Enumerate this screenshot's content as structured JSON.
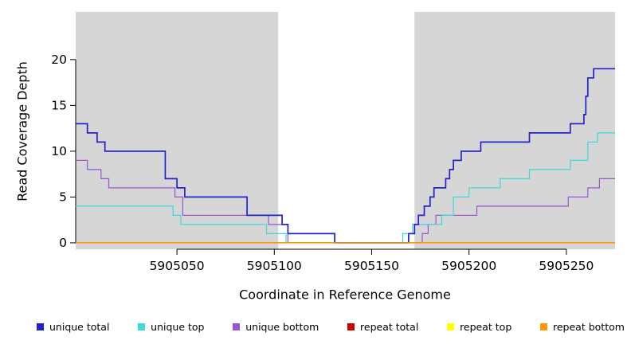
{
  "chart_data": {
    "type": "line",
    "subtype": "step",
    "title": "",
    "xlabel": "Coordinate in Reference Genome",
    "ylabel": "Read Coverage Depth",
    "xlim": [
      5904998,
      5905275
    ],
    "ylim": [
      -0.7,
      25.2
    ],
    "xticks": [
      5905050,
      5905100,
      5905150,
      5905200,
      5905250
    ],
    "yticks": [
      0,
      5,
      10,
      15,
      20
    ],
    "grid": false,
    "legend_position": "bottom",
    "background_color": "#ffffff",
    "shaded_region_color": "#d6d6d6",
    "shaded_regions": [
      {
        "x0": 5904998,
        "x1": 5905102
      },
      {
        "x0": 5905172,
        "x1": 5905275
      }
    ],
    "draw_order": [
      3,
      4,
      2,
      1,
      0,
      5
    ],
    "series": [
      {
        "name": "unique total",
        "color": "#2222CC",
        "width": 1.7,
        "points": [
          [
            5904998,
            13
          ],
          [
            5905004,
            12
          ],
          [
            5905009,
            11
          ],
          [
            5905013,
            10
          ],
          [
            5905044,
            7
          ],
          [
            5905050,
            6
          ],
          [
            5905054,
            5
          ],
          [
            5905086,
            3
          ],
          [
            5905104,
            2
          ],
          [
            5905107,
            1
          ],
          [
            5905131,
            0
          ],
          [
            5905169,
            1
          ],
          [
            5905172,
            2
          ],
          [
            5905174,
            3
          ],
          [
            5905177,
            4
          ],
          [
            5905180,
            5
          ],
          [
            5905182,
            6
          ],
          [
            5905188,
            7
          ],
          [
            5905190,
            8
          ],
          [
            5905192,
            9
          ],
          [
            5905196,
            10
          ],
          [
            5905206,
            11
          ],
          [
            5905231,
            12
          ],
          [
            5905252,
            13
          ],
          [
            5905259,
            14
          ],
          [
            5905260,
            16
          ],
          [
            5905261,
            18
          ],
          [
            5905264,
            19
          ],
          [
            5905275,
            19
          ]
        ]
      },
      {
        "name": "unique top",
        "color": "#3FD9D9",
        "width": 1.2,
        "points": [
          [
            5904998,
            4
          ],
          [
            5905048,
            3
          ],
          [
            5905052,
            2
          ],
          [
            5905096,
            1
          ],
          [
            5905106,
            0
          ],
          [
            5905166,
            1
          ],
          [
            5905171,
            2
          ],
          [
            5905186,
            3
          ],
          [
            5905192,
            5
          ],
          [
            5905200,
            6
          ],
          [
            5905216,
            7
          ],
          [
            5905231,
            8
          ],
          [
            5905252,
            9
          ],
          [
            5905261,
            11
          ],
          [
            5905266,
            12
          ],
          [
            5905275,
            12
          ]
        ]
      },
      {
        "name": "unique bottom",
        "color": "#9955CC",
        "width": 1.2,
        "points": [
          [
            5904998,
            9
          ],
          [
            5905004,
            8
          ],
          [
            5905011,
            7
          ],
          [
            5905015,
            6
          ],
          [
            5905049,
            5
          ],
          [
            5905053,
            3
          ],
          [
            5905097,
            2
          ],
          [
            5905107,
            0
          ],
          [
            5905176,
            1
          ],
          [
            5905179,
            2
          ],
          [
            5905183,
            3
          ],
          [
            5905204,
            4
          ],
          [
            5905251,
            5
          ],
          [
            5905261,
            6
          ],
          [
            5905267,
            7
          ],
          [
            5905275,
            7
          ]
        ]
      },
      {
        "name": "repeat total",
        "color": "#CC0000",
        "width": 1.2,
        "points": [
          [
            5904998,
            0
          ],
          [
            5905275,
            0
          ]
        ]
      },
      {
        "name": "repeat top",
        "color": "#FFFF00",
        "width": 1.2,
        "points": [
          [
            5904998,
            0
          ],
          [
            5905275,
            0
          ]
        ]
      },
      {
        "name": "repeat bottom",
        "color": "#FF9900",
        "width": 1.5,
        "points": [
          [
            5904998,
            0
          ],
          [
            5905275,
            0
          ]
        ]
      }
    ]
  }
}
